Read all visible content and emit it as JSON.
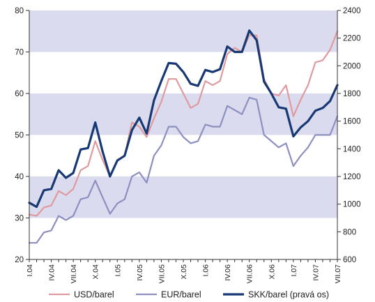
{
  "chart_data": {
    "type": "line",
    "title": "",
    "xlabel": "",
    "ylabel": "",
    "x_ticks": [
      "I.04",
      "IV.04",
      "VII.04",
      "X.04",
      "I.05",
      "IV.05",
      "VII.05",
      "X.05",
      "I.06",
      "IV.06",
      "VII.06",
      "X.06",
      "I.07",
      "IV.07",
      "VII.07"
    ],
    "x": [
      "I.04",
      "II.04",
      "III.04",
      "IV.04",
      "V.04",
      "VI.04",
      "VII.04",
      "VIII.04",
      "IX.04",
      "X.04",
      "XI.04",
      "XII.04",
      "I.05",
      "II.05",
      "III.05",
      "IV.05",
      "V.05",
      "VI.05",
      "VII.05",
      "VIII.05",
      "IX.05",
      "X.05",
      "XI.05",
      "XII.05",
      "I.06",
      "II.06",
      "III.06",
      "IV.06",
      "V.06",
      "VI.06",
      "VII.06",
      "VIII.06",
      "IX.06",
      "X.06",
      "XI.06",
      "XII.06",
      "I.07",
      "II.07",
      "III.07",
      "IV.07",
      "V.07",
      "VI.07",
      "VII.07"
    ],
    "ylim_left": [
      20,
      80
    ],
    "yticks_left": [
      20,
      30,
      40,
      50,
      60,
      70,
      80
    ],
    "ylim_right": [
      600,
      2400
    ],
    "yticks_right": [
      600,
      800,
      1000,
      1200,
      1400,
      1600,
      1800,
      2000,
      2200,
      2400
    ],
    "grid_bands": true,
    "legend_position": "bottom",
    "series": [
      {
        "name": "USD/barel",
        "axis": "left",
        "color": "#de9a9e",
        "values": [
          30.8,
          30.5,
          32.5,
          33,
          36.5,
          35.5,
          37,
          41.5,
          42.5,
          48.5,
          44,
          40,
          44,
          45,
          53,
          52,
          49.5,
          54,
          58,
          63.5,
          63.5,
          60,
          56.5,
          57.5,
          63,
          62,
          63,
          69.5,
          71,
          70,
          74,
          74,
          63.5,
          60,
          59.5,
          62,
          54.5,
          58.5,
          62,
          67.5,
          68,
          70.5,
          75
        ]
      },
      {
        "name": "EUR/barel",
        "axis": "left",
        "color": "#8c8fbf",
        "values": [
          24,
          24,
          26.5,
          27,
          30.5,
          29.5,
          30.5,
          34.5,
          35,
          39,
          35,
          31,
          33.5,
          34.5,
          40,
          41,
          38.5,
          45,
          47.5,
          52,
          52,
          49.5,
          48,
          48.5,
          52.5,
          52,
          52,
          57,
          56,
          55,
          59,
          58.5,
          50,
          48.5,
          47,
          48,
          42.5,
          45,
          47,
          50,
          50,
          50,
          54.5
        ]
      },
      {
        "name": "SKK/barel (pravá os)",
        "axis": "right",
        "color": "#173873",
        "values": [
          1010,
          980,
          1100,
          1110,
          1245,
          1190,
          1225,
          1395,
          1405,
          1590,
          1380,
          1200,
          1315,
          1350,
          1535,
          1625,
          1510,
          1750,
          1890,
          2020,
          2015,
          1955,
          1870,
          1855,
          1970,
          1955,
          1975,
          2140,
          2100,
          2100,
          2255,
          2185,
          1885,
          1800,
          1700,
          1690,
          1490,
          1555,
          1600,
          1675,
          1695,
          1745,
          1860
        ]
      }
    ]
  }
}
